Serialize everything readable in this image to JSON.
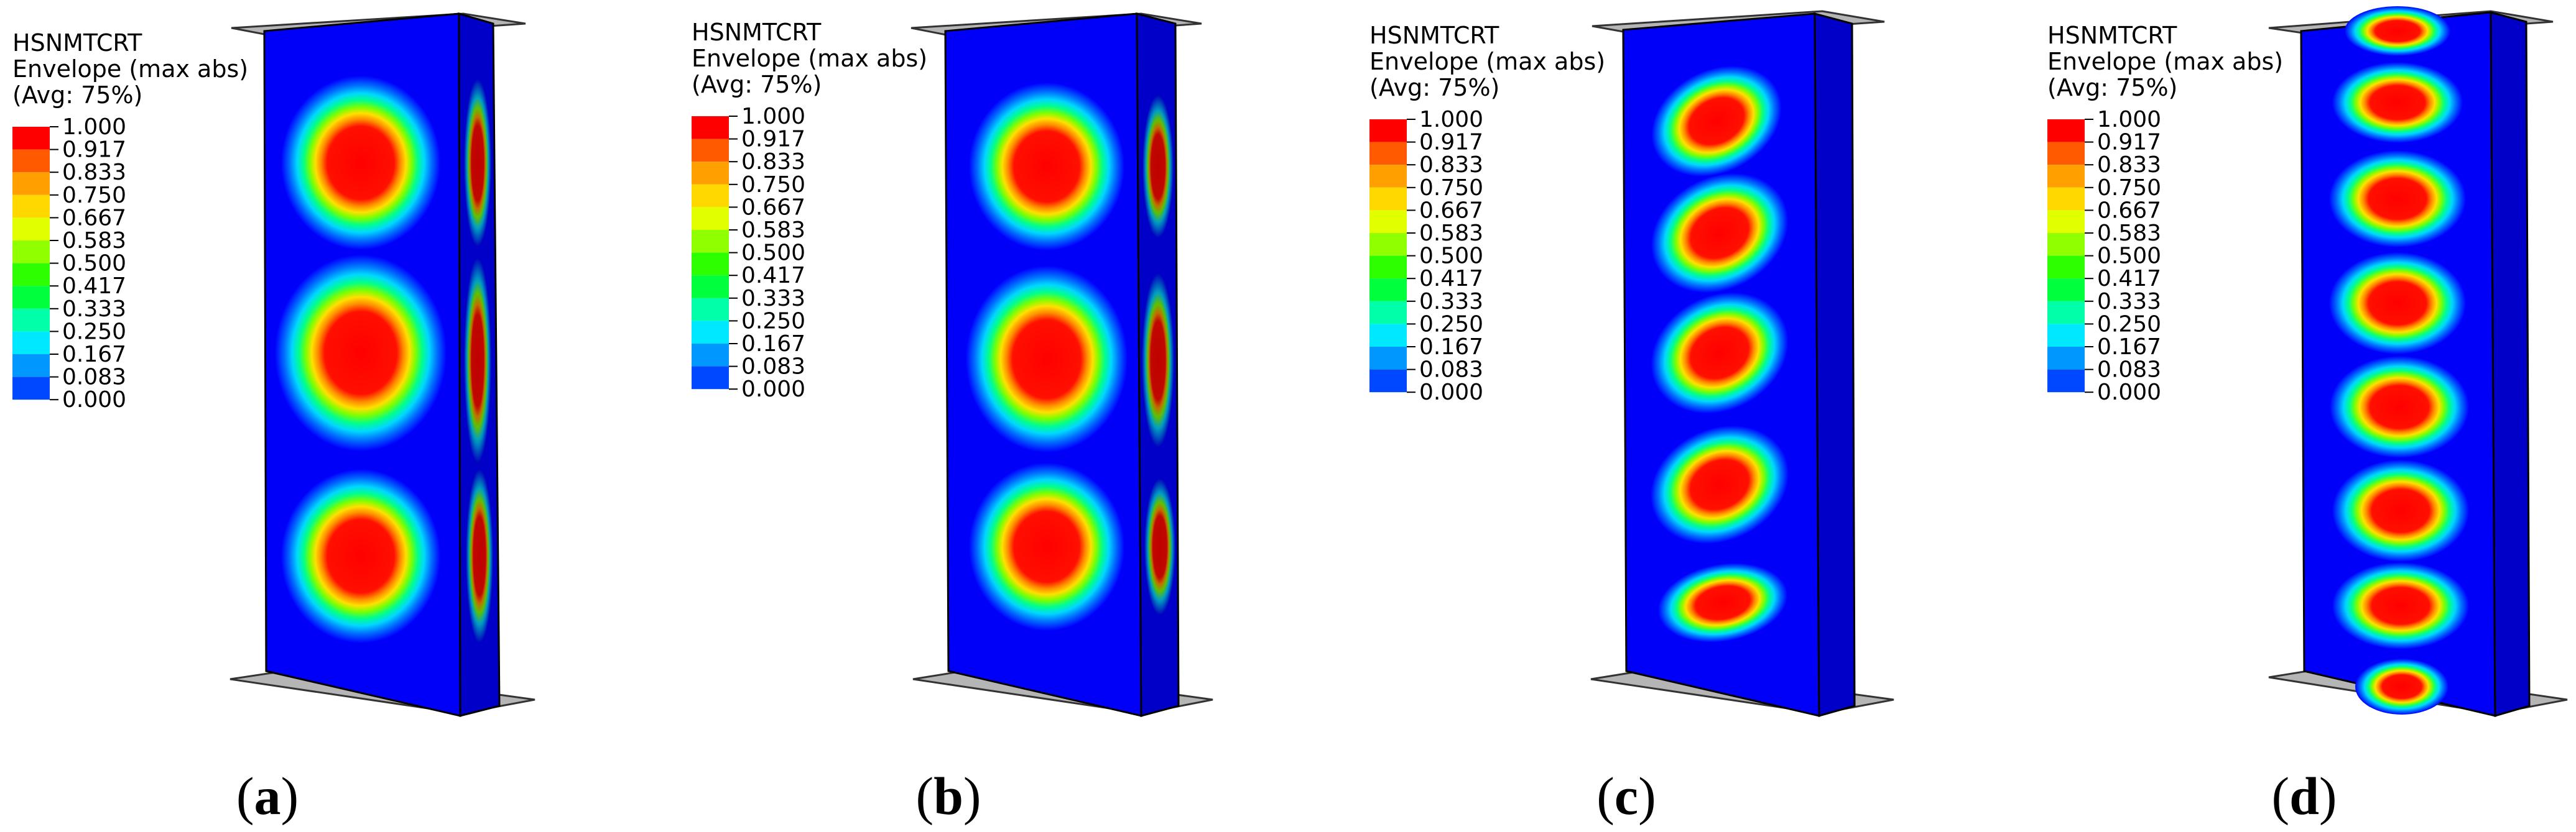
{
  "legend": {
    "variable": "HSNMTCRT",
    "title_line2": "Envelope (max abs)",
    "title_line3": "(Avg: 75%)",
    "levels": [
      "1.000",
      "0.917",
      "0.833",
      "0.750",
      "0.667",
      "0.583",
      "0.500",
      "0.417",
      "0.333",
      "0.250",
      "0.167",
      "0.083",
      "0.000"
    ],
    "colors": [
      "#ff0000",
      "#ff5a00",
      "#ffa000",
      "#ffd800",
      "#e2ff00",
      "#90ff00",
      "#2dff00",
      "#00ff3c",
      "#00ffa8",
      "#00e8ff",
      "#0098ff",
      "#0048ff"
    ]
  },
  "panels": [
    {
      "label": "a",
      "bulge_count": 3
    },
    {
      "label": "b",
      "bulge_count": 3
    },
    {
      "label": "c",
      "bulge_count": 5
    },
    {
      "label": "d",
      "bulge_count": 8
    }
  ]
}
